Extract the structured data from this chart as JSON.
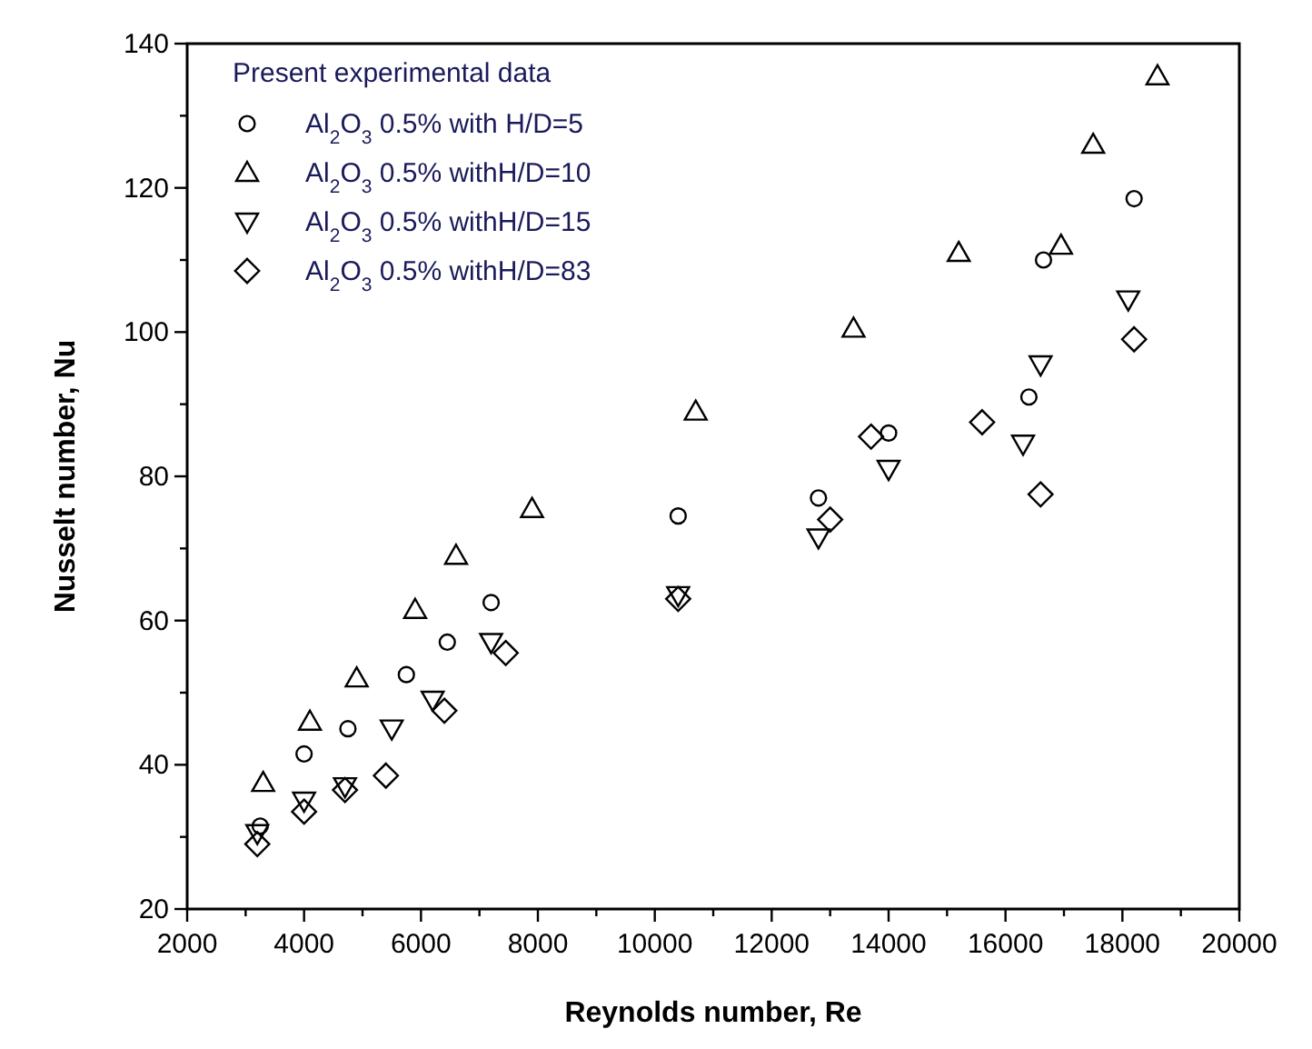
{
  "chart_data": {
    "type": "scatter",
    "xlabel": "Reynolds number, Re",
    "ylabel": "Nusselt number, Nu",
    "legend_title": "Present experimental data",
    "legend": "top left",
    "grid": false,
    "xlim": [
      2000,
      20000
    ],
    "ylim": [
      20,
      140
    ],
    "xticks": [
      2000,
      {
        "value": 3000,
        "label": null
      },
      4000,
      {
        "value": 5000,
        "label": null
      },
      6000,
      {
        "value": 7000,
        "label": null
      },
      8000,
      {
        "value": 9000,
        "label": null
      },
      10000,
      {
        "value": 11000,
        "label": null
      },
      12000,
      {
        "value": 13000,
        "label": null
      },
      14000,
      {
        "value": 15000,
        "label": null
      },
      16000,
      {
        "value": 17000,
        "label": null
      },
      18000,
      {
        "value": 19000,
        "label": null
      },
      20000
    ],
    "yticks": [
      20,
      {
        "value": 30,
        "label": null
      },
      40,
      {
        "value": 50,
        "label": null
      },
      60,
      {
        "value": 70,
        "label": null
      },
      80,
      {
        "value": 90,
        "label": null
      },
      100,
      {
        "value": 110,
        "label": null
      },
      120,
      {
        "value": 130,
        "label": null
      },
      140
    ],
    "series": [
      {
        "name": "Al$_{2}$O$_{3}$ 0.5% with H/D=5",
        "color": "#000000",
        "marker": "circle",
        "x": [
          3250,
          4000,
          4750,
          5750,
          6450,
          7200,
          10400,
          12800,
          14000,
          16400,
          16650,
          18200
        ],
        "values": [
          31.5,
          41.5,
          45,
          52.5,
          57,
          62.5,
          74.5,
          77,
          86,
          91,
          110,
          118.5
        ]
      },
      {
        "name": "Al$_{2}$O$_{3}$ 0.5% withH/D=10",
        "color": "#000000",
        "marker": "triangle",
        "x": [
          3300,
          4100,
          4900,
          5900,
          6600,
          7900,
          10700,
          13400,
          15200,
          16950,
          17500,
          18600
        ],
        "values": [
          37.5,
          46,
          52,
          61.5,
          69,
          75.5,
          89,
          100.5,
          111,
          112,
          126,
          135.5
        ]
      },
      {
        "name": "Al$_{2}$O$_{3}$ 0.5% withH/D=15",
        "color": "#000000",
        "marker": "triangle-down",
        "x": [
          3200,
          4000,
          4700,
          5500,
          6200,
          7200,
          10400,
          12800,
          14000,
          16300,
          16600,
          18100
        ],
        "values": [
          30.5,
          35,
          37,
          45,
          49,
          57,
          63.5,
          71.5,
          81,
          84.5,
          95.5,
          104.5
        ]
      },
      {
        "name": "Al$_{2}$O$_{3}$ 0.5% withH/D=83",
        "color": "#000000",
        "marker": "diamond",
        "x": [
          3200,
          4000,
          4700,
          5400,
          6400,
          7450,
          10400,
          13000,
          13700,
          15600,
          16600,
          18200
        ],
        "values": [
          29,
          33.5,
          36.5,
          38.5,
          47.5,
          55.5,
          63,
          74,
          85.5,
          87.5,
          77.5,
          99
        ]
      }
    ]
  }
}
